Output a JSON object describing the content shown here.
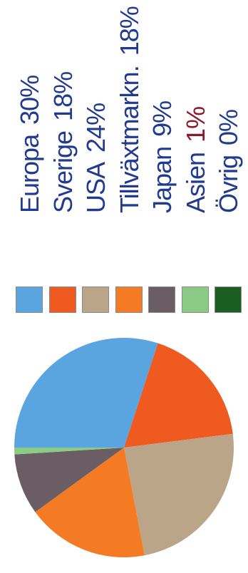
{
  "chart_data": {
    "type": "pie",
    "title": "",
    "slices": [
      {
        "label": "Europa",
        "value": 30,
        "display": "30%",
        "color": "#5aa5e0"
      },
      {
        "label": "Sverige",
        "value": 18,
        "display": "18%",
        "color": "#ee5a20"
      },
      {
        "label": "USA",
        "value": 24,
        "display": "24%",
        "color": "#bba588"
      },
      {
        "label": "Tillväxtmarkn.",
        "value": 18,
        "display": "18%",
        "color": "#f47b24"
      },
      {
        "label": "Japan",
        "value": 9,
        "display": "9%",
        "color": "#6b5d64"
      },
      {
        "label": "Asien",
        "value": 1,
        "display": "1%",
        "color": "#8ccb86"
      },
      {
        "label": "Övrig",
        "value": 0,
        "display": "0%",
        "color": "#1a5e22"
      }
    ],
    "legend_position": "right"
  }
}
